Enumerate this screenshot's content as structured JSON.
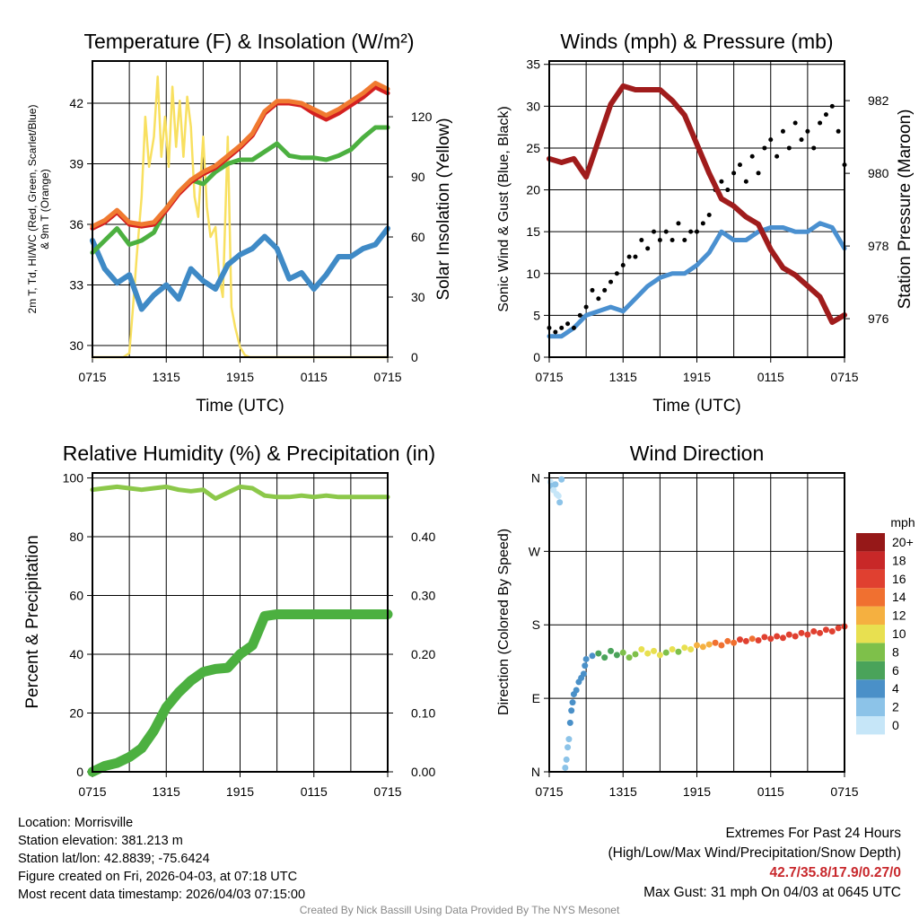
{
  "chart_data": [
    {
      "type": "line",
      "title": "Temperature (F) & Insolation (W/m²)",
      "xlabel": "Time (UTC)",
      "ylabel": "2m T, Td, HI/WC (Red, Green, Scarlet/Blue)",
      "ylabel2": "& 9m T (Orange)",
      "ylabel_right": "Solar Insolation (Yellow)",
      "x_ticks": [
        "0715",
        "1315",
        "1915",
        "0115",
        "0715"
      ],
      "y_ticks": [
        "30",
        "33",
        "36",
        "39",
        "42"
      ],
      "y_right_ticks": [
        "0",
        "30",
        "60",
        "90",
        "120"
      ],
      "ylim": [
        29.42,
        44.09
      ],
      "ylim_right": [
        0,
        147.8
      ],
      "xlim_hours": [
        0,
        24
      ],
      "hours": [
        0,
        1,
        2,
        3,
        4,
        5,
        6,
        7,
        8,
        9,
        10,
        11,
        12,
        13,
        14,
        15,
        16,
        17,
        18,
        19,
        20,
        21,
        22,
        23,
        24
      ],
      "series": [
        {
          "name": "9m T",
          "color": "#f07a30",
          "values": [
            35.9,
            36.2,
            36.7,
            36.1,
            36.0,
            36.1,
            36.8,
            37.6,
            38.2,
            38.6,
            38.9,
            39.4,
            39.9,
            40.5,
            41.6,
            42.1,
            42.1,
            42.0,
            41.7,
            41.4,
            41.7,
            42.1,
            42.5,
            43.0,
            42.7
          ]
        },
        {
          "name": "2m T",
          "color": "#d42020",
          "values": [
            35.8,
            36.1,
            36.6,
            36.0,
            35.9,
            36.0,
            36.7,
            37.5,
            38.1,
            38.5,
            38.8,
            39.3,
            39.8,
            40.4,
            41.5,
            42.0,
            42.0,
            41.9,
            41.5,
            41.2,
            41.5,
            41.9,
            42.3,
            42.8,
            42.5
          ]
        },
        {
          "name": "Td",
          "color": "#4cb040",
          "values": [
            34.6,
            35.2,
            35.8,
            35.0,
            35.2,
            35.6,
            36.8,
            37.6,
            38.2,
            38.0,
            38.6,
            39.0,
            39.2,
            39.2,
            39.6,
            40.0,
            39.4,
            39.3,
            39.3,
            39.2,
            39.4,
            39.7,
            40.3,
            40.8,
            40.8
          ]
        },
        {
          "name": "HI/WC",
          "color": "#3f8ac6",
          "values": [
            35.2,
            33.8,
            33.1,
            33.5,
            31.8,
            32.5,
            33.0,
            32.3,
            33.8,
            33.2,
            32.8,
            34.0,
            34.5,
            34.8,
            35.4,
            34.8,
            33.3,
            33.6,
            32.8,
            33.5,
            34.4,
            34.4,
            34.8,
            35.0,
            35.8
          ]
        }
      ],
      "solar": {
        "name": "Solar Insolation",
        "color": "#f8e060",
        "hours": [
          0,
          2.5,
          3.0,
          3.3,
          3.6,
          4.0,
          4.3,
          4.6,
          5.0,
          5.3,
          5.6,
          5.9,
          6.2,
          6.5,
          6.8,
          7.1,
          7.4,
          7.7,
          8.0,
          8.3,
          8.6,
          9.0,
          9.3,
          9.6,
          10.0,
          10.3,
          10.6,
          11.0,
          11.3,
          11.6,
          12.0,
          12.4,
          12.8,
          24
        ],
        "values": [
          0,
          0,
          2,
          25,
          50,
          80,
          120,
          95,
          110,
          140,
          100,
          120,
          95,
          135,
          105,
          128,
          100,
          130,
          115,
          80,
          70,
          110,
          75,
          60,
          65,
          40,
          30,
          110,
          25,
          15,
          5,
          1,
          0,
          0
        ]
      }
    },
    {
      "type": "line",
      "title": "Winds (mph) & Pressure (mb)",
      "xlabel": "Time (UTC)",
      "ylabel": "Sonic Wind & Gust (Blue, Black)",
      "ylabel_right": "Station Pressure (Maroon)",
      "x_ticks": [
        "0715",
        "1315",
        "1915",
        "0115",
        "0715"
      ],
      "y_ticks": [
        "0",
        "5",
        "10",
        "15",
        "20",
        "25",
        "30",
        "35"
      ],
      "y_right_ticks": [
        "976",
        "978",
        "980",
        "982"
      ],
      "ylim": [
        0,
        35.4
      ],
      "ylim_right": [
        974.94,
        983.09
      ],
      "hours": [
        0,
        1,
        2,
        3,
        4,
        5,
        6,
        7,
        8,
        9,
        10,
        11,
        12,
        13,
        14,
        15,
        16,
        17,
        18,
        19,
        20,
        21,
        22,
        23,
        24
      ],
      "pressure": {
        "name": "Station Pressure",
        "color": "#a01c1c",
        "values": [
          980.4,
          980.3,
          980.4,
          979.9,
          980.9,
          981.9,
          982.4,
          982.3,
          982.3,
          982.3,
          982.0,
          981.6,
          980.8,
          980.0,
          979.3,
          979.1,
          978.8,
          978.6,
          977.9,
          977.4,
          977.2,
          976.9,
          976.6,
          975.9,
          976.1
        ]
      },
      "wind": {
        "name": "Sonic Wind",
        "color": "#4a90d0",
        "values": [
          2.5,
          2.5,
          3.5,
          5,
          5.5,
          6,
          5.5,
          7,
          8.5,
          9.5,
          10,
          10,
          11,
          12.5,
          15,
          14,
          14,
          15,
          15.5,
          15.5,
          15,
          15,
          16,
          15.5,
          13
        ]
      },
      "gust": {
        "name": "Gust",
        "color": "#000000",
        "step_hours": 0.5,
        "values": [
          3.5,
          3,
          3.5,
          4,
          3.5,
          5,
          6,
          8,
          7,
          8,
          9,
          10,
          11,
          12,
          12,
          14,
          13,
          15,
          14,
          15,
          14,
          16,
          14,
          15,
          15,
          16,
          17,
          20,
          21,
          20,
          22,
          23,
          21,
          24,
          22,
          25,
          26,
          24,
          27,
          25,
          28,
          26,
          27,
          25,
          28,
          29,
          30,
          27,
          23
        ]
      }
    },
    {
      "type": "line",
      "title": "Relative Humidity (%) & Precipitation (in)",
      "ylabel": "Percent & Precipitation",
      "x_ticks": [
        "0715",
        "1315",
        "1915",
        "0115",
        "0715"
      ],
      "y_ticks": [
        "0",
        "20",
        "40",
        "60",
        "80",
        "100"
      ],
      "y_right_ticks": [
        "0.00",
        "0.10",
        "0.20",
        "0.30",
        "0.40"
      ],
      "ylim": [
        0,
        101.7
      ],
      "ylim_right": [
        0,
        0.5085
      ],
      "hours": [
        0,
        1,
        2,
        3,
        4,
        5,
        6,
        7,
        8,
        9,
        10,
        11,
        12,
        13,
        14,
        15,
        16,
        17,
        18,
        19,
        20,
        21,
        22,
        23,
        24
      ],
      "rh": {
        "name": "Relative Humidity",
        "color": "#8cc84a",
        "values": [
          96,
          96.5,
          97,
          96.5,
          96,
          96.5,
          97,
          96,
          95.5,
          96,
          93,
          95,
          97,
          96.5,
          94,
          93.5,
          93.5,
          94,
          93.5,
          94,
          93.5,
          93.5,
          93.5,
          93.5,
          93.5
        ]
      },
      "precip": {
        "name": "Precipitation",
        "color": "#4cb040",
        "values": [
          0,
          0.01,
          0.015,
          0.025,
          0.04,
          0.07,
          0.11,
          0.135,
          0.155,
          0.17,
          0.175,
          0.177,
          0.2,
          0.215,
          0.265,
          0.268,
          0.268,
          0.268,
          0.268,
          0.268,
          0.268,
          0.268,
          0.268,
          0.268,
          0.268
        ]
      }
    },
    {
      "type": "scatter",
      "title": "Wind Direction",
      "ylabel": "Direction (Colored By Speed)",
      "x_ticks": [
        "0715",
        "1315",
        "1915",
        "0115",
        "0715"
      ],
      "y_ticks": [
        "N",
        "E",
        "S",
        "W",
        "N"
      ],
      "y_tick_values": [
        0,
        90,
        180,
        270,
        360
      ],
      "ylim": [
        0,
        366
      ],
      "colorbar": {
        "title": "mph",
        "labels": [
          "0",
          "2",
          "4",
          "6",
          "8",
          "10",
          "12",
          "14",
          "16",
          "18",
          "20+"
        ],
        "colors": [
          "#c6e6f8",
          "#8cc3e8",
          "#4a90c8",
          "#4aa35a",
          "#7ec04a",
          "#e8e050",
          "#f5b040",
          "#f07030",
          "#e04030",
          "#c82828",
          "#961818"
        ]
      },
      "hours": [
        0.1,
        0.2,
        0.35,
        0.5,
        0.6,
        0.75,
        0.85,
        1.0,
        1.3,
        1.4,
        1.5,
        1.6,
        1.7,
        1.8,
        1.9,
        2.0,
        2.2,
        2.4,
        2.6,
        2.8,
        2.9,
        3,
        3.5,
        4,
        4.5,
        5,
        5.5,
        6,
        6.5,
        7,
        7.5,
        8,
        8.5,
        9,
        9.5,
        10,
        10.5,
        11,
        11.5,
        12,
        12.5,
        13,
        13.5,
        14,
        14.5,
        15,
        15.5,
        16,
        16.5,
        17,
        17.5,
        18,
        18.5,
        19,
        19.5,
        20,
        20.5,
        21,
        21.5,
        22,
        22.5,
        23,
        23.5,
        24
      ],
      "directions": [
        355,
        350,
        345,
        352,
        340,
        338,
        330,
        358,
        5,
        15,
        30,
        40,
        60,
        75,
        85,
        95,
        100,
        110,
        115,
        120,
        130,
        138,
        142,
        145,
        140,
        148,
        143,
        146,
        140,
        144,
        150,
        145,
        148,
        143,
        146,
        150,
        147,
        152,
        150,
        155,
        153,
        156,
        158,
        155,
        160,
        158,
        162,
        160,
        163,
        161,
        165,
        163,
        166,
        164,
        168,
        166,
        170,
        168,
        172,
        170,
        174,
        172,
        176,
        178
      ],
      "speeds": [
        1,
        2,
        1,
        2,
        1,
        1,
        2,
        2,
        3,
        3,
        3,
        3,
        4,
        4,
        4,
        4,
        4,
        4,
        4,
        5,
        5,
        4,
        5,
        6,
        6,
        7,
        7,
        8,
        8,
        9,
        10,
        10,
        10,
        11,
        9,
        10,
        9,
        10,
        11,
        12,
        12,
        13,
        14,
        14,
        15,
        15,
        16,
        16,
        15,
        16,
        17,
        16,
        17,
        17,
        16,
        17,
        16,
        16,
        17,
        16,
        17,
        16,
        17,
        16
      ]
    }
  ],
  "station_info": [
    "Location: Morrisville",
    "Station elevation: 381.213 m",
    "Station lat/lon: 42.8839; -75.6424",
    "Figure created on Fri, 2026-04-03, at 07:18 UTC",
    "Most recent data timestamp: 2026/04/03 07:15:00"
  ],
  "extremes": {
    "title": "Extremes For Past 24 Hours",
    "subtitle": "(High/Low/Max Wind/Precipitation/Snow Depth)",
    "values": "42.7/35.8/17.9/0.27/0",
    "max_gust": "Max Gust: 31 mph On 04/03 at 0645 UTC"
  },
  "credit": "Created By Nick Bassill Using Data Provided By The NYS Mesonet"
}
